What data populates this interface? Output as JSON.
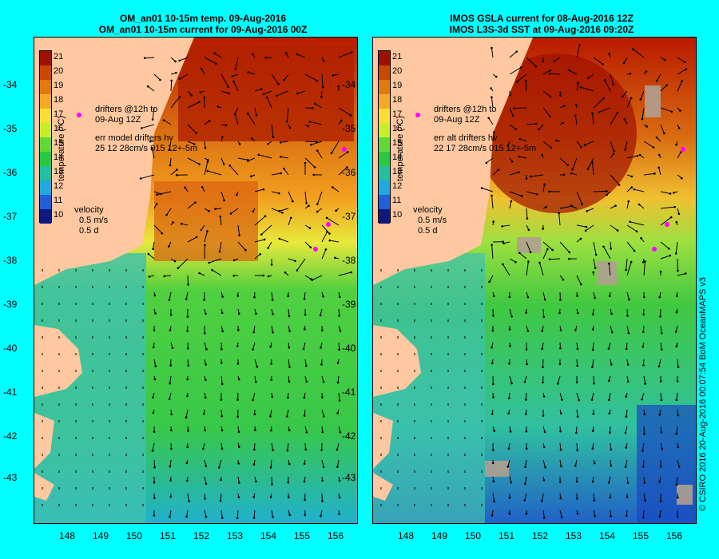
{
  "left_panel": {
    "title_line1": "OM_an01 10-15m temp. 09-Aug-2016",
    "title_line2": "OM_an01 10-15m current for 09-Aug-2016 00Z",
    "drifters_label_line1": "drifters @12h to",
    "drifters_label_line2": "09-Aug 12Z",
    "err_label_line1": "err model drifters hv",
    "err_label_line2": "25 12 28cm/s 015 12+-5m",
    "velocity_label": "velocity",
    "velocity_scale_speed": "0.5 m/s",
    "velocity_scale_time": "0.5 d"
  },
  "right_panel": {
    "title_line1": "IMOS GSLA current for 08-Aug-2016 12Z",
    "title_line2": "IMOS L3S-3d SST at 09-Aug-2016 09:20Z",
    "drifters_label_line1": "drifters @12h to",
    "drifters_label_line2": "09-Aug 12Z",
    "err_label_line1": "err alt drifters hv",
    "err_label_line2": "22 17 28cm/s 015 12+-5m",
    "velocity_label": "velocity",
    "velocity_scale_speed": "0.5 m/s",
    "velocity_scale_time": "0.5 d"
  },
  "colorbar": {
    "unit_label": "temperature (°C)",
    "ticks": [
      "21",
      "20",
      "19",
      "18",
      "17",
      "16",
      "15",
      "14",
      "13",
      "12",
      "11",
      "10"
    ],
    "colors": [
      "#9b1200",
      "#c84a00",
      "#e07a10",
      "#f5a828",
      "#f8de36",
      "#c8ee2a",
      "#60d838",
      "#28c840",
      "#20c0a0",
      "#20a8e0",
      "#2060d8",
      "#101880"
    ]
  },
  "axes": {
    "lat_labels": [
      "-34",
      "-35",
      "-36",
      "-37",
      "-38",
      "-39",
      "-40",
      "-41",
      "-42",
      "-43"
    ],
    "lon_labels": [
      "148",
      "149",
      "150",
      "151",
      "152",
      "153",
      "154",
      "155",
      "156"
    ]
  },
  "credit": "© CSIRO 2016   20-Aug-2016 00:07:54 BoM OceanMAPS v3",
  "map_colors": {
    "land": "#ffc8a0",
    "background": "#00ffff",
    "drifter": "#ff00ff"
  }
}
